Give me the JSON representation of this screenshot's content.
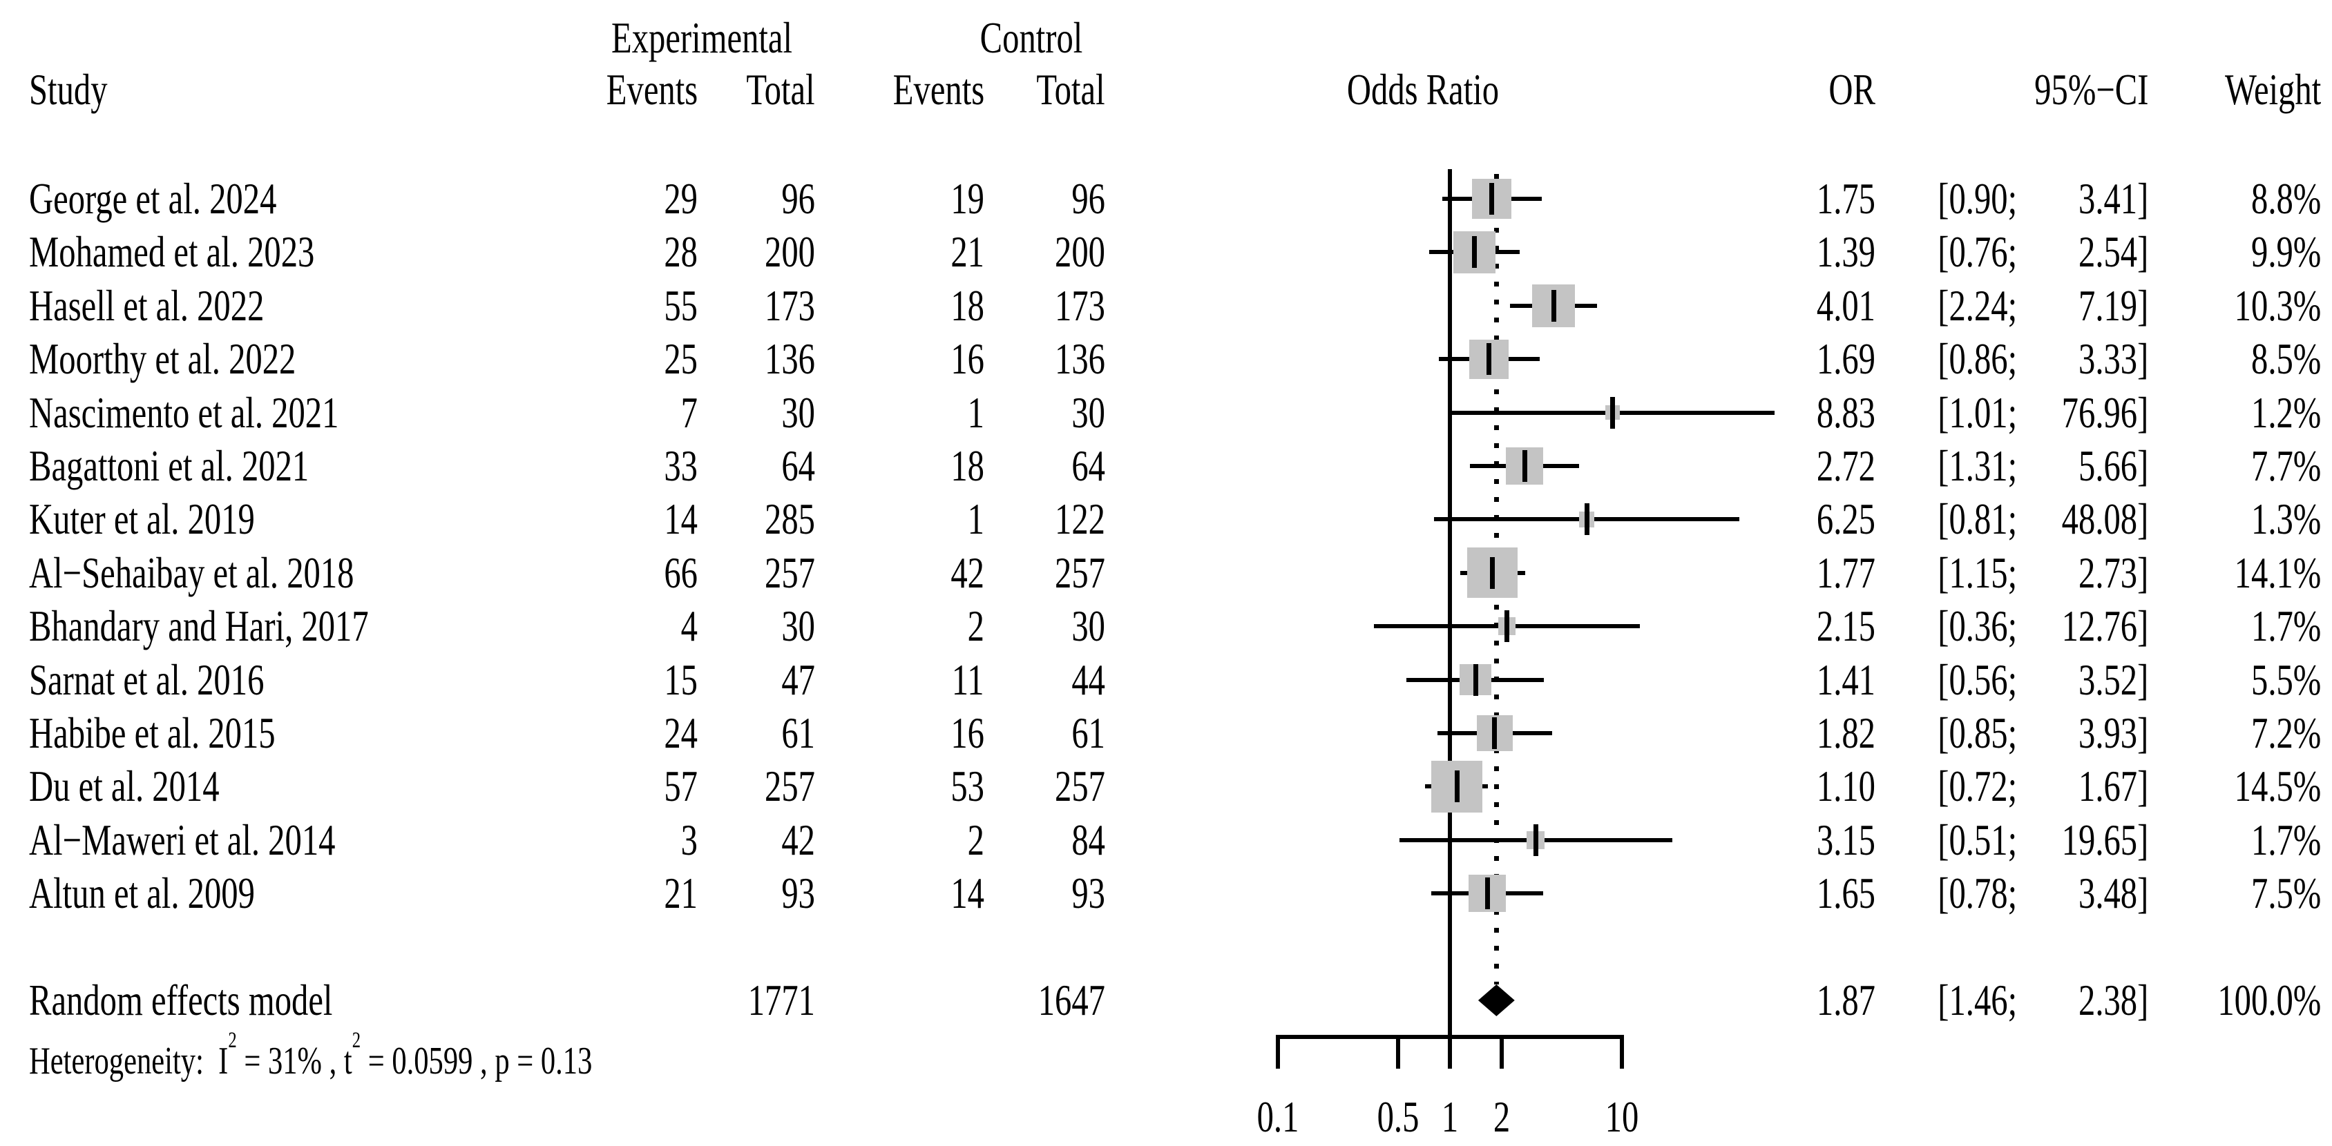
{
  "header": {
    "study": "Study",
    "experimental": "Experimental",
    "control": "Control",
    "events": "Events",
    "total": "Total",
    "odds_ratio": "Odds Ratio",
    "or": "OR",
    "ci": "95%−CI",
    "weight": "Weight"
  },
  "colors": {
    "square": "#c4c4c4",
    "ink": "#000000",
    "background": "#ffffff"
  },
  "chart_data": {
    "type": "forest",
    "effect_measure": "Odds Ratio",
    "x_axis": {
      "scale": "log10",
      "ticks": [
        0.1,
        0.5,
        1,
        2,
        10
      ],
      "tick_labels": [
        "0.1",
        "0.5",
        "1",
        "2",
        "10"
      ],
      "reference_line": 1,
      "pooled_dotted_line": 1.87
    },
    "studies": [
      {
        "study": "George et al. 2024",
        "exp_events": "29",
        "exp_total": "96",
        "ctrl_events": "19",
        "ctrl_total": "96",
        "or": 1.75,
        "ci_low": 0.9,
        "ci_high": 3.41,
        "or_label": "1.75",
        "ci_low_label": "[0.90;",
        "ci_high_label": "3.41]",
        "weight_label": "8.8%",
        "weight_pct": 8.8
      },
      {
        "study": "Mohamed et al. 2023",
        "exp_events": "28",
        "exp_total": "200",
        "ctrl_events": "21",
        "ctrl_total": "200",
        "or": 1.39,
        "ci_low": 0.76,
        "ci_high": 2.54,
        "or_label": "1.39",
        "ci_low_label": "[0.76;",
        "ci_high_label": "2.54]",
        "weight_label": "9.9%",
        "weight_pct": 9.9
      },
      {
        "study": "Hasell et al. 2022",
        "exp_events": "55",
        "exp_total": "173",
        "ctrl_events": "18",
        "ctrl_total": "173",
        "or": 4.01,
        "ci_low": 2.24,
        "ci_high": 7.19,
        "or_label": "4.01",
        "ci_low_label": "[2.24;",
        "ci_high_label": "7.19]",
        "weight_label": "10.3%",
        "weight_pct": 10.3
      },
      {
        "study": "Moorthy et al. 2022",
        "exp_events": "25",
        "exp_total": "136",
        "ctrl_events": "16",
        "ctrl_total": "136",
        "or": 1.69,
        "ci_low": 0.86,
        "ci_high": 3.33,
        "or_label": "1.69",
        "ci_low_label": "[0.86;",
        "ci_high_label": "3.33]",
        "weight_label": "8.5%",
        "weight_pct": 8.5
      },
      {
        "study": "Nascimento et al. 2021",
        "exp_events": "7",
        "exp_total": "30",
        "ctrl_events": "1",
        "ctrl_total": "30",
        "or": 8.83,
        "ci_low": 1.01,
        "ci_high": 76.96,
        "or_label": "8.83",
        "ci_low_label": "[1.01;",
        "ci_high_label": "76.96]",
        "weight_label": "1.2%",
        "weight_pct": 1.2
      },
      {
        "study": "Bagattoni et al. 2021",
        "exp_events": "33",
        "exp_total": "64",
        "ctrl_events": "18",
        "ctrl_total": "64",
        "or": 2.72,
        "ci_low": 1.31,
        "ci_high": 5.66,
        "or_label": "2.72",
        "ci_low_label": "[1.31;",
        "ci_high_label": "5.66]",
        "weight_label": "7.7%",
        "weight_pct": 7.7
      },
      {
        "study": "Kuter et al. 2019",
        "exp_events": "14",
        "exp_total": "285",
        "ctrl_events": "1",
        "ctrl_total": "122",
        "or": 6.25,
        "ci_low": 0.81,
        "ci_high": 48.08,
        "or_label": "6.25",
        "ci_low_label": "[0.81;",
        "ci_high_label": "48.08]",
        "weight_label": "1.3%",
        "weight_pct": 1.3
      },
      {
        "study": "Al−Sehaibay et al. 2018",
        "exp_events": "66",
        "exp_total": "257",
        "ctrl_events": "42",
        "ctrl_total": "257",
        "or": 1.77,
        "ci_low": 1.15,
        "ci_high": 2.73,
        "or_label": "1.77",
        "ci_low_label": "[1.15;",
        "ci_high_label": "2.73]",
        "weight_label": "14.1%",
        "weight_pct": 14.1
      },
      {
        "study": "Bhandary and Hari, 2017",
        "exp_events": "4",
        "exp_total": "30",
        "ctrl_events": "2",
        "ctrl_total": "30",
        "or": 2.15,
        "ci_low": 0.36,
        "ci_high": 12.76,
        "or_label": "2.15",
        "ci_low_label": "[0.36;",
        "ci_high_label": "12.76]",
        "weight_label": "1.7%",
        "weight_pct": 1.7
      },
      {
        "study": "Sarnat et al. 2016",
        "exp_events": "15",
        "exp_total": "47",
        "ctrl_events": "11",
        "ctrl_total": "44",
        "or": 1.41,
        "ci_low": 0.56,
        "ci_high": 3.52,
        "or_label": "1.41",
        "ci_low_label": "[0.56;",
        "ci_high_label": "3.52]",
        "weight_label": "5.5%",
        "weight_pct": 5.5
      },
      {
        "study": "Habibe et al. 2015",
        "exp_events": "24",
        "exp_total": "61",
        "ctrl_events": "16",
        "ctrl_total": "61",
        "or": 1.82,
        "ci_low": 0.85,
        "ci_high": 3.93,
        "or_label": "1.82",
        "ci_low_label": "[0.85;",
        "ci_high_label": "3.93]",
        "weight_label": "7.2%",
        "weight_pct": 7.2
      },
      {
        "study": "Du et al. 2014",
        "exp_events": "57",
        "exp_total": "257",
        "ctrl_events": "53",
        "ctrl_total": "257",
        "or": 1.1,
        "ci_low": 0.72,
        "ci_high": 1.67,
        "or_label": "1.10",
        "ci_low_label": "[0.72;",
        "ci_high_label": "1.67]",
        "weight_label": "14.5%",
        "weight_pct": 14.5
      },
      {
        "study": "Al−Maweri et al. 2014",
        "exp_events": "3",
        "exp_total": "42",
        "ctrl_events": "2",
        "ctrl_total": "84",
        "or": 3.15,
        "ci_low": 0.51,
        "ci_high": 19.65,
        "or_label": "3.15",
        "ci_low_label": "[0.51;",
        "ci_high_label": "19.65]",
        "weight_label": "1.7%",
        "weight_pct": 1.7
      },
      {
        "study": "Altun et al. 2009",
        "exp_events": "21",
        "exp_total": "93",
        "ctrl_events": "14",
        "ctrl_total": "93",
        "or": 1.65,
        "ci_low": 0.78,
        "ci_high": 3.48,
        "or_label": "1.65",
        "ci_low_label": "[0.78;",
        "ci_high_label": "3.48]",
        "weight_label": "7.5%",
        "weight_pct": 7.5
      }
    ],
    "summary": {
      "label": "Random effects model",
      "exp_total": "1771",
      "ctrl_total": "1647",
      "or": 1.87,
      "ci_low": 1.46,
      "ci_high": 2.38,
      "or_label": "1.87",
      "ci_low_label": "[1.46;",
      "ci_high_label": "2.38]",
      "weight_label": "100.0%"
    },
    "heterogeneity": {
      "prefix": "Heterogeneity:  I",
      "sup1": "2",
      "mid": " = 31% , t",
      "sup2": "2",
      "tail": " = 0.0599 , p = 0.13"
    }
  }
}
